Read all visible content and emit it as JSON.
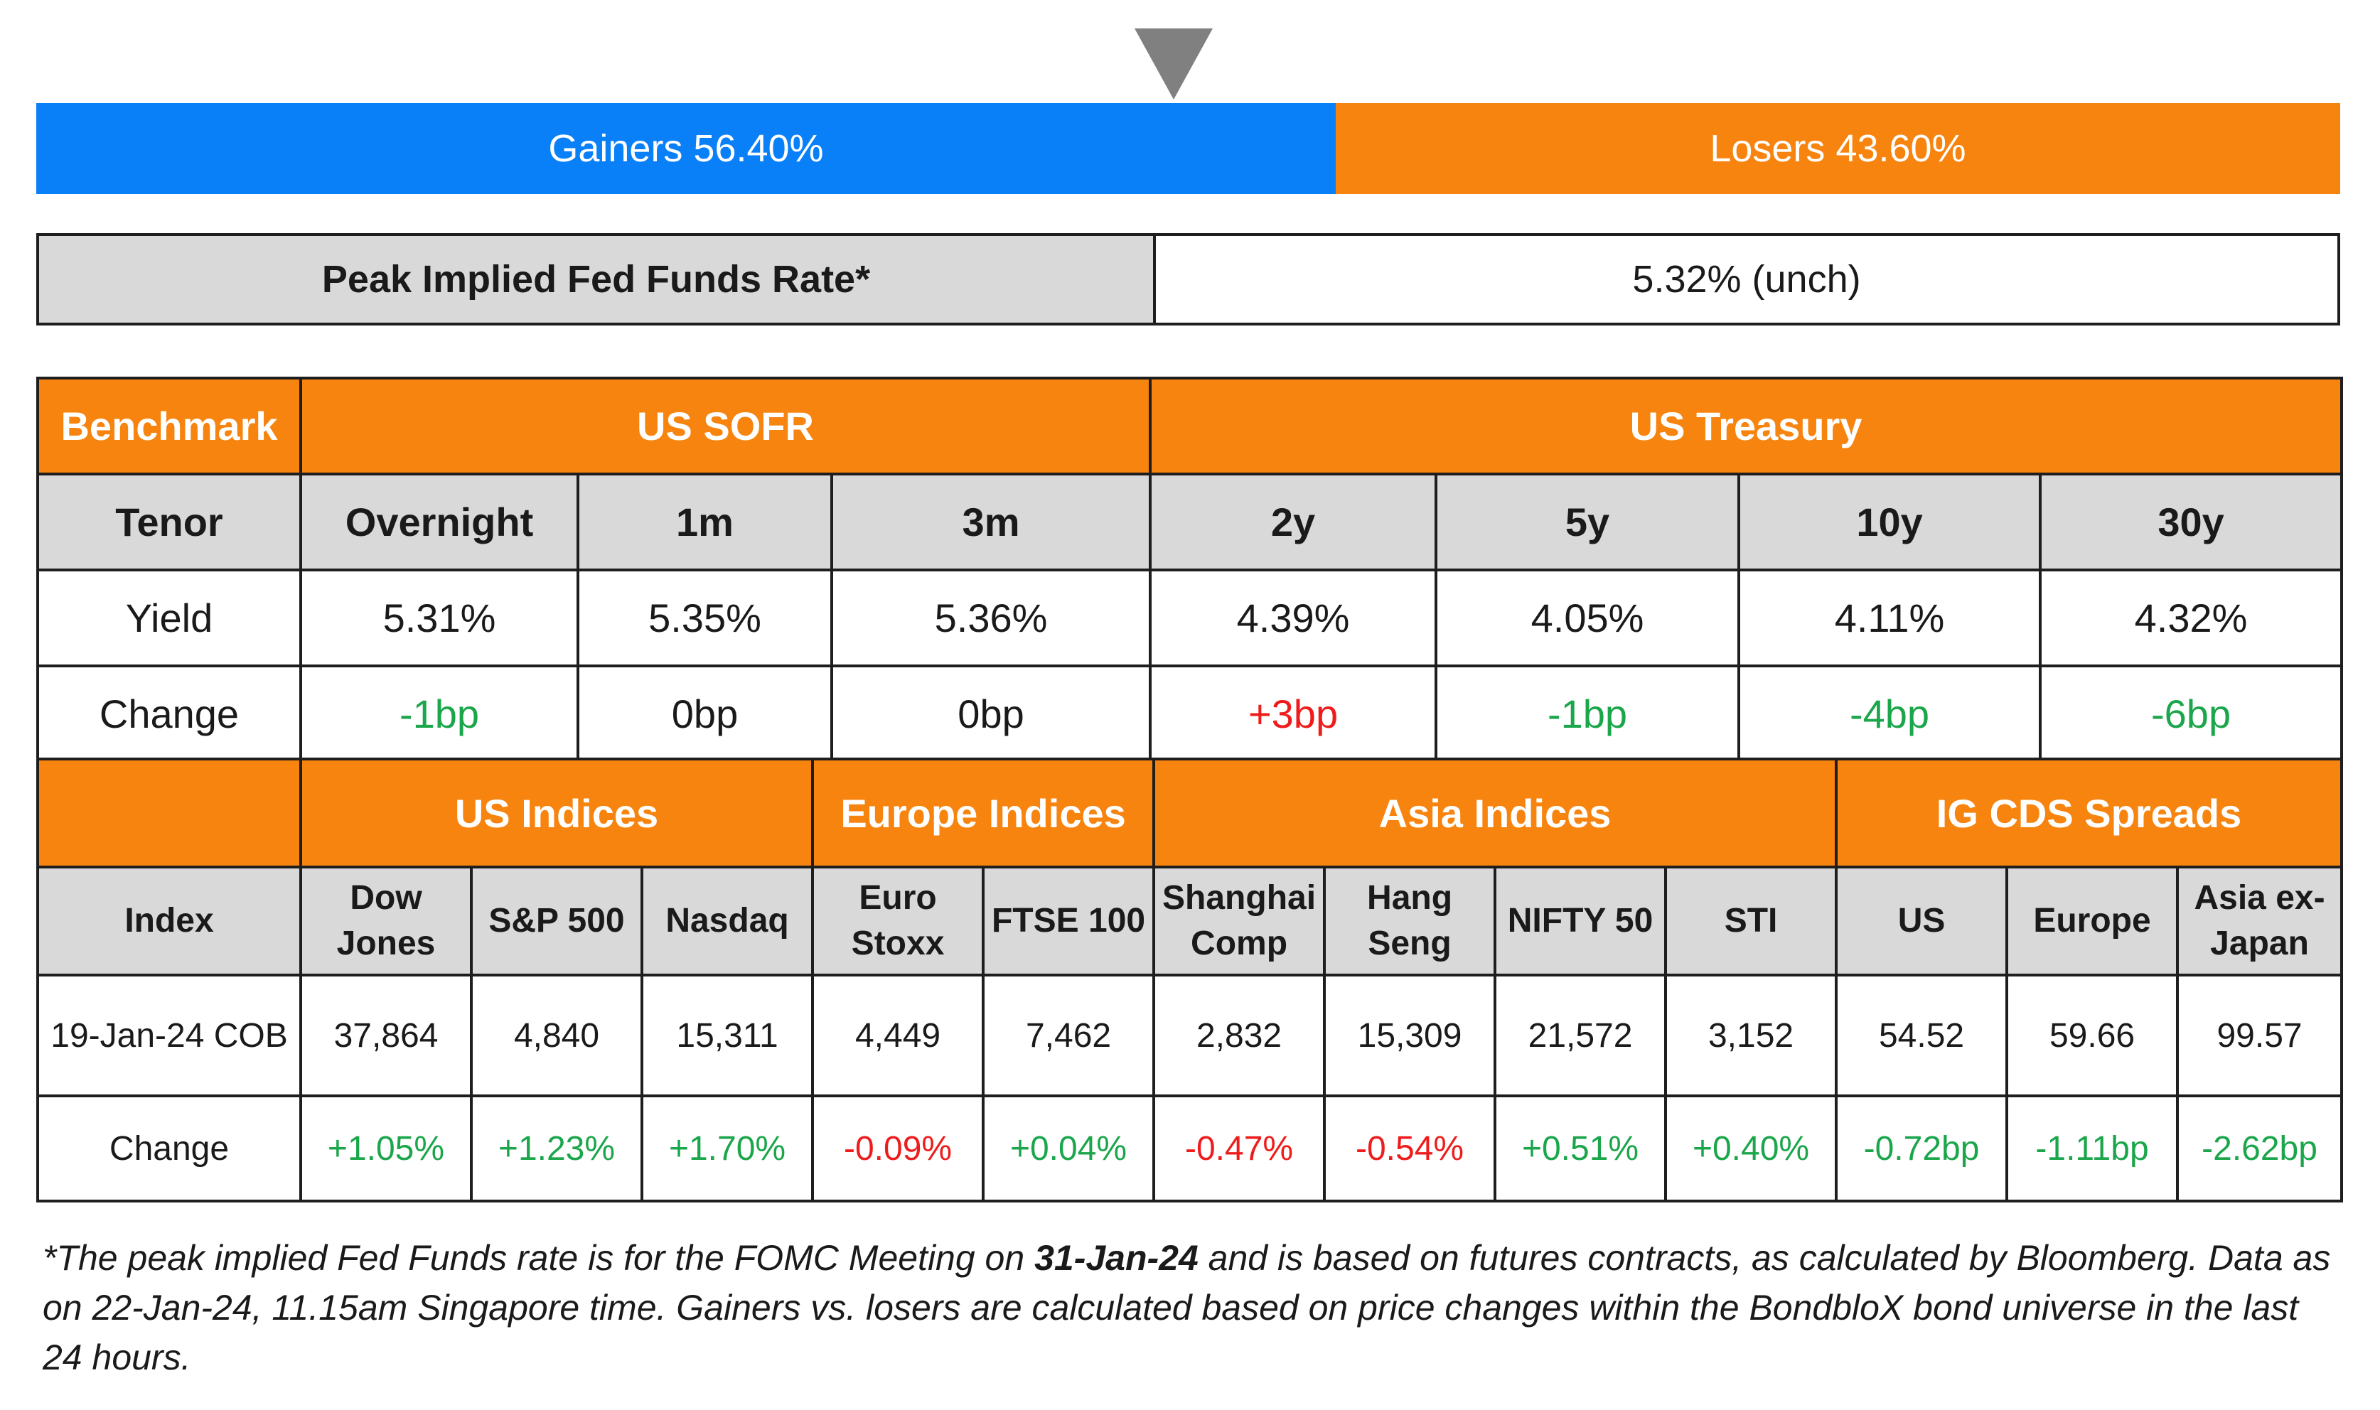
{
  "gainers_losers": {
    "gainers_label": "Gainers 56.40%",
    "losers_label": "Losers 43.60%",
    "gainers_pct": 56.4,
    "losers_pct": 43.6,
    "gainers_color": "#0a80f8",
    "losers_color": "#f7840f"
  },
  "peak_rate": {
    "label": "Peak Implied Fed Funds Rate*",
    "value": "5.32% (unch)"
  },
  "rates": {
    "benchmark_label": "Benchmark",
    "sofr_label": "US SOFR",
    "treasury_label": "US Treasury",
    "tenor_label": "Tenor",
    "yield_label": "Yield",
    "change_label": "Change",
    "tenors": [
      "Overnight",
      "1m",
      "3m",
      "2y",
      "5y",
      "10y",
      "30y"
    ],
    "yields": [
      "5.31%",
      "5.35%",
      "5.36%",
      "4.39%",
      "4.05%",
      "4.11%",
      "4.32%"
    ],
    "changes": [
      "-1bp",
      "0bp",
      "0bp",
      "+3bp",
      "-1bp",
      "-4bp",
      "-6bp"
    ]
  },
  "indices": {
    "groups": [
      "US Indices",
      "Europe Indices",
      "Asia Indices",
      "IG CDS Spreads"
    ],
    "index_label": "Index",
    "date_label": "19-Jan-24 COB",
    "change_label": "Change",
    "names": [
      [
        "Dow",
        "Jones"
      ],
      [
        "S&P 500"
      ],
      [
        "Nasdaq"
      ],
      [
        "Euro",
        "Stoxx"
      ],
      [
        "FTSE 100"
      ],
      [
        "Shanghai",
        "Comp"
      ],
      [
        "Hang",
        "Seng"
      ],
      [
        "NIFTY 50"
      ],
      [
        "STI"
      ],
      [
        "US"
      ],
      [
        "Europe"
      ],
      [
        "Asia ex-",
        "Japan"
      ]
    ],
    "values": [
      "37,864",
      "4,840",
      "15,311",
      "4,449",
      "7,462",
      "2,832",
      "15,309",
      "21,572",
      "3,152",
      "54.52",
      "59.66",
      "99.57"
    ],
    "changes": [
      "+1.05%",
      "+1.23%",
      "+1.70%",
      "-0.09%",
      "+0.04%",
      "-0.47%",
      "-0.54%",
      "+0.51%",
      "+0.40%",
      "-0.72bp",
      "-1.11bp",
      "-2.62bp"
    ]
  },
  "footnote": {
    "part1": "*The peak implied Fed Funds rate is for the FOMC Meeting on ",
    "date_bold": "31-Jan-24",
    "part2": " and is based on futures contracts, as calculated by Bloomberg. Data as on 22-Jan-24, 11.15am Singapore time. Gainers vs. losers are calculated based on price changes within the BondbloX bond universe in the last 24 hours."
  }
}
